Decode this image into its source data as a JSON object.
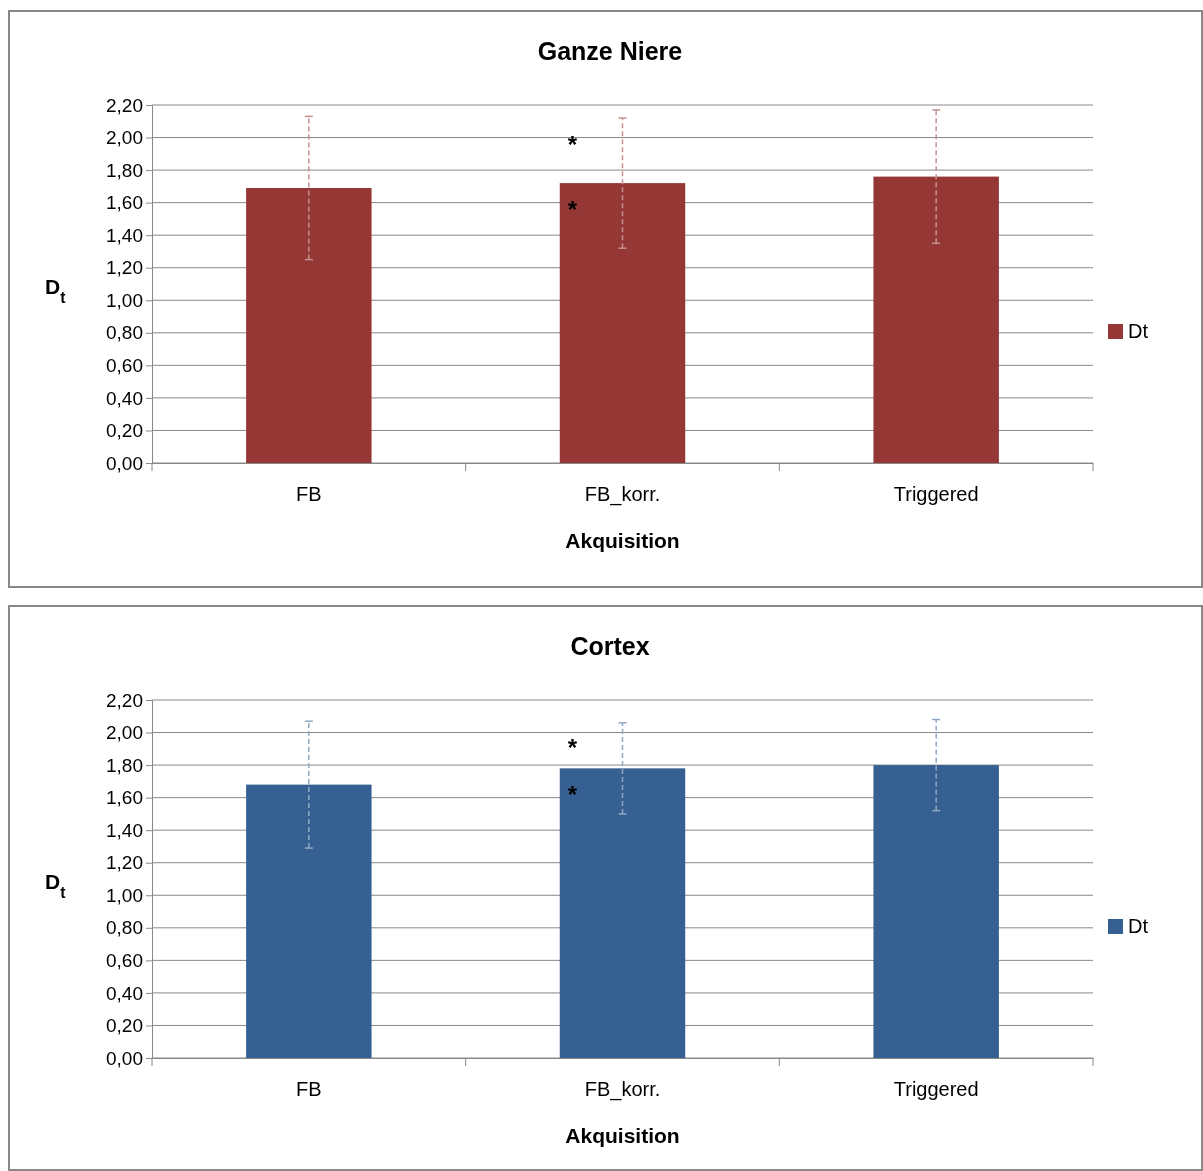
{
  "chart_data": [
    {
      "type": "bar",
      "title": "Ganze Niere",
      "xlabel": "Akquisition",
      "ylabel": "D$_{t}$",
      "categories": [
        "FB",
        "FB_korr.",
        "Triggered"
      ],
      "series": [
        {
          "name": "Dt",
          "color": "#953735",
          "values": [
            1.69,
            1.72,
            1.76
          ],
          "errors": [
            0.44,
            0.4,
            0.41
          ]
        }
      ],
      "ylim": [
        0,
        2.2
      ],
      "yticks": [
        {
          "value": 0,
          "label": "0,00"
        },
        {
          "value": 0.2,
          "label": "0,20"
        },
        {
          "value": 0.4,
          "label": "0,40"
        },
        {
          "value": 0.6,
          "label": "0,60"
        },
        {
          "value": 0.8,
          "label": "0,80"
        },
        {
          "value": 1,
          "label": "1,00"
        },
        {
          "value": 1.2,
          "label": "1,20"
        },
        {
          "value": 1.4,
          "label": "1,40"
        },
        {
          "value": 1.6,
          "label": "1,60"
        },
        {
          "value": 1.8,
          "label": "1,80"
        },
        {
          "value": 2,
          "label": "2,00"
        },
        {
          "value": 2.2,
          "label": "2,20"
        }
      ],
      "grid": "y",
      "legend": "right",
      "annotations": [
        {
          "text": "*",
          "x": "FB_korr.",
          "y": 1.98
        },
        {
          "text": "*",
          "x": "FB_korr.",
          "y": 1.58
        }
      ]
    },
    {
      "type": "bar",
      "title": "Cortex",
      "xlabel": "Akquisition",
      "ylabel": "D$_{t}$",
      "categories": [
        "FB",
        "FB_korr.",
        "Triggered"
      ],
      "series": [
        {
          "name": "Dt",
          "color": "#376092",
          "values": [
            1.68,
            1.78,
            1.8
          ],
          "errors": [
            0.39,
            0.28,
            0.28
          ]
        }
      ],
      "ylim": [
        0,
        2.2
      ],
      "yticks": [
        {
          "value": 0,
          "label": "0,00"
        },
        {
          "value": 0.2,
          "label": "0,20"
        },
        {
          "value": 0.4,
          "label": "0,40"
        },
        {
          "value": 0.6,
          "label": "0,60"
        },
        {
          "value": 0.8,
          "label": "0,80"
        },
        {
          "value": 1,
          "label": "1,00"
        },
        {
          "value": 1.2,
          "label": "1,20"
        },
        {
          "value": 1.4,
          "label": "1,40"
        },
        {
          "value": 1.6,
          "label": "1,60"
        },
        {
          "value": 1.8,
          "label": "1,80"
        },
        {
          "value": 2,
          "label": "2,00"
        },
        {
          "value": 2.2,
          "label": "2,20"
        }
      ],
      "grid": "y",
      "legend": "right",
      "annotations": [
        {
          "text": "*",
          "x": "FB_korr.",
          "y": 1.93
        },
        {
          "text": "*",
          "x": "FB_korr.",
          "y": 1.64
        }
      ]
    }
  ]
}
